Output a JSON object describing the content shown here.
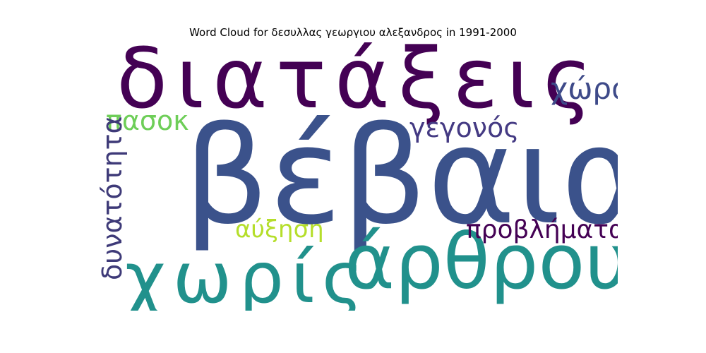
{
  "chart_data": {
    "type": "wordcloud",
    "title": "Word Cloud for δεσυλλας γεωργιου αλεξανδρος in 1991-2000",
    "words": [
      {
        "text": "βέβαια",
        "weight": 1.0,
        "color": "#3b528b",
        "orientation": "horizontal"
      },
      {
        "text": "διατάξεις",
        "weight": 0.62,
        "color": "#440154",
        "orientation": "horizontal"
      },
      {
        "text": "άρθρου",
        "weight": 0.62,
        "color": "#21918c",
        "orientation": "horizontal"
      },
      {
        "text": "χωρίς",
        "weight": 0.55,
        "color": "#21918c",
        "orientation": "horizontal"
      },
      {
        "text": "χώρας",
        "weight": 0.22,
        "color": "#3e4a89",
        "orientation": "horizontal"
      },
      {
        "text": "γεγονός",
        "weight": 0.2,
        "color": "#443a83",
        "orientation": "horizontal"
      },
      {
        "text": "πασοκ",
        "weight": 0.2,
        "color": "#6ece58",
        "orientation": "horizontal"
      },
      {
        "text": "δυνατότητα",
        "weight": 0.2,
        "color": "#3e3a78",
        "orientation": "vertical"
      },
      {
        "text": "προβλήματα",
        "weight": 0.2,
        "color": "#440154",
        "orientation": "horizontal"
      },
      {
        "text": "αύξηση",
        "weight": 0.18,
        "color": "#b5de2b",
        "orientation": "horizontal"
      }
    ]
  }
}
